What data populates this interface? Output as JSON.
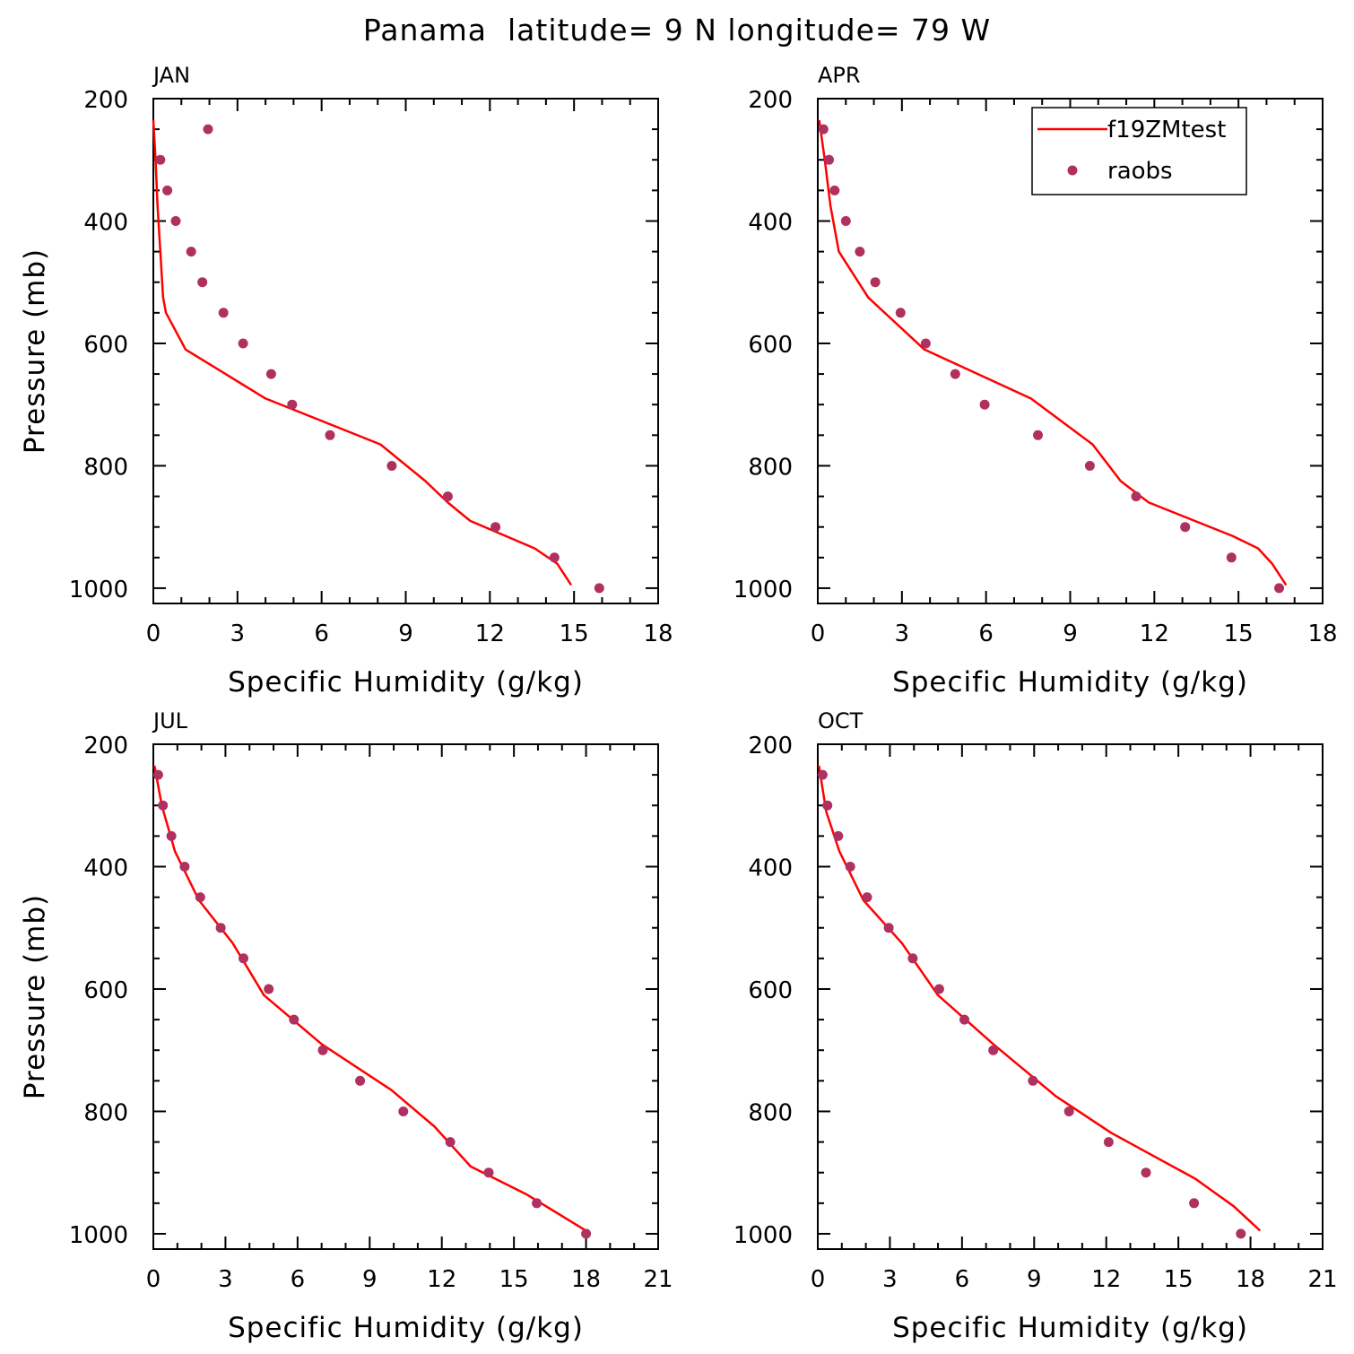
{
  "page_title": "Panama  latitude= 9 N longitude= 79 W",
  "colors": {
    "model": "#ff0000",
    "obs": "#b03060",
    "axis": "#000000",
    "background": "#ffffff"
  },
  "legend": {
    "model_label": "f19ZMtest",
    "obs_label": "raobs"
  },
  "chart_data": [
    {
      "type": "line",
      "title": "JAN",
      "xlabel": "Specific Humidity (g/kg)",
      "ylabel": "Pressure (mb)",
      "xlim": [
        0,
        18
      ],
      "ylim": [
        1025,
        200
      ],
      "y_reversed": true,
      "xticks": [
        0,
        3,
        6,
        9,
        12,
        15,
        18
      ],
      "yticks": [
        200,
        400,
        600,
        800,
        1000
      ],
      "grid": false,
      "legend": "none",
      "series": [
        {
          "name": "f19ZMtest",
          "kind": "line",
          "x": [
            0.0,
            0.08,
            0.15,
            0.25,
            0.35,
            0.45,
            1.15,
            4.0,
            8.1,
            9.7,
            10.5,
            11.3,
            13.6,
            14.4,
            14.9
          ],
          "y": [
            235,
            300,
            375,
            450,
            525,
            550,
            610,
            690,
            765,
            825,
            860,
            890,
            935,
            960,
            995
          ]
        },
        {
          "name": "raobs",
          "kind": "scatter",
          "x": [
            1.95,
            0.25,
            0.5,
            0.8,
            1.35,
            1.75,
            2.5,
            3.2,
            4.2,
            4.95,
            6.3,
            8.5,
            10.5,
            12.2,
            14.3,
            15.9
          ],
          "y": [
            250,
            300,
            350,
            400,
            450,
            500,
            550,
            600,
            650,
            700,
            750,
            800,
            850,
            900,
            950,
            1000
          ]
        }
      ]
    },
    {
      "type": "line",
      "title": "APR",
      "xlabel": "Specific Humidity (g/kg)",
      "ylabel": "",
      "xlim": [
        0,
        18
      ],
      "ylim": [
        1025,
        200
      ],
      "y_reversed": true,
      "xticks": [
        0,
        3,
        6,
        9,
        12,
        15,
        18
      ],
      "yticks": [
        200,
        400,
        600,
        800,
        1000
      ],
      "grid": false,
      "legend": "top-right",
      "series": [
        {
          "name": "f19ZMtest",
          "kind": "line",
          "x": [
            0.05,
            0.25,
            0.45,
            0.75,
            1.8,
            3.8,
            7.6,
            9.8,
            10.8,
            11.8,
            14.8,
            15.7,
            16.2,
            16.7
          ],
          "y": [
            235,
            300,
            375,
            450,
            525,
            610,
            690,
            765,
            825,
            860,
            915,
            935,
            960,
            995
          ]
        },
        {
          "name": "raobs",
          "kind": "scatter",
          "x": [
            0.2,
            0.4,
            0.6,
            1.0,
            1.5,
            2.05,
            2.95,
            3.85,
            4.9,
            5.95,
            7.85,
            9.7,
            11.35,
            13.1,
            14.75,
            16.45
          ],
          "y": [
            250,
            300,
            350,
            400,
            450,
            500,
            550,
            600,
            650,
            700,
            750,
            800,
            850,
            900,
            950,
            1000
          ]
        }
      ]
    },
    {
      "type": "line",
      "title": "JUL",
      "xlabel": "Specific Humidity (g/kg)",
      "ylabel": "Pressure (mb)",
      "xlim": [
        0,
        21
      ],
      "ylim": [
        1025,
        200
      ],
      "y_reversed": true,
      "xticks": [
        0,
        3,
        6,
        9,
        12,
        15,
        18,
        21
      ],
      "yticks": [
        200,
        400,
        600,
        800,
        1000
      ],
      "grid": false,
      "legend": "none",
      "series": [
        {
          "name": "f19ZMtest",
          "kind": "line",
          "x": [
            0.05,
            0.35,
            0.9,
            1.9,
            3.3,
            4.6,
            7.0,
            9.9,
            11.7,
            13.2,
            15.5,
            18.0
          ],
          "y": [
            235,
            300,
            375,
            455,
            525,
            610,
            690,
            765,
            825,
            890,
            935,
            995
          ]
        },
        {
          "name": "raobs",
          "kind": "scatter",
          "x": [
            0.2,
            0.4,
            0.75,
            1.3,
            1.95,
            2.8,
            3.75,
            4.8,
            5.85,
            7.05,
            8.6,
            10.4,
            12.35,
            13.95,
            15.95,
            18.0
          ],
          "y": [
            250,
            300,
            350,
            400,
            450,
            500,
            550,
            600,
            650,
            700,
            750,
            800,
            850,
            900,
            950,
            1000
          ]
        }
      ]
    },
    {
      "type": "line",
      "title": "OCT",
      "xlabel": "Specific Humidity (g/kg)",
      "ylabel": "",
      "xlim": [
        0,
        21
      ],
      "ylim": [
        1025,
        200
      ],
      "y_reversed": true,
      "xticks": [
        0,
        3,
        6,
        9,
        12,
        15,
        18,
        21
      ],
      "yticks": [
        200,
        400,
        600,
        800,
        1000
      ],
      "grid": false,
      "legend": "none",
      "series": [
        {
          "name": "f19ZMtest",
          "kind": "line",
          "x": [
            0.05,
            0.35,
            0.9,
            1.9,
            3.5,
            5.0,
            7.3,
            9.9,
            12.2,
            13.6,
            15.7,
            17.3,
            18.4
          ],
          "y": [
            235,
            310,
            375,
            455,
            525,
            610,
            690,
            775,
            835,
            865,
            910,
            955,
            995
          ]
        },
        {
          "name": "raobs",
          "kind": "scatter",
          "x": [
            0.2,
            0.4,
            0.85,
            1.35,
            2.05,
            2.95,
            3.95,
            5.05,
            6.1,
            7.3,
            8.95,
            10.45,
            12.1,
            13.65,
            15.65,
            17.6
          ],
          "y": [
            250,
            300,
            350,
            400,
            450,
            500,
            550,
            600,
            650,
            700,
            750,
            800,
            850,
            900,
            950,
            1000
          ]
        }
      ]
    }
  ]
}
